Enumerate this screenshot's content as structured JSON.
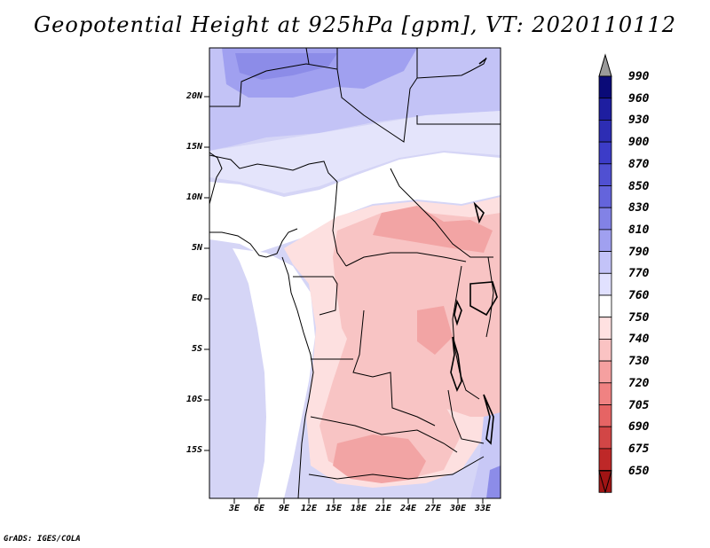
{
  "title": "Geopotential Height at 925hPa [gpm], VT: 2020110112",
  "credit": "GrADS: IGES/COLA",
  "lat_labels": [
    "20N",
    "15N",
    "10N",
    "5N",
    "EQ",
    "5S",
    "10S",
    "15S"
  ],
  "lon_labels": [
    "3E",
    "6E",
    "9E",
    "12E",
    "15E",
    "18E",
    "21E",
    "24E",
    "27E",
    "30E",
    "33E"
  ],
  "colorbar": {
    "levels": [
      "990",
      "960",
      "930",
      "900",
      "870",
      "850",
      "830",
      "810",
      "790",
      "770",
      "760",
      "750",
      "740",
      "730",
      "720",
      "705",
      "690",
      "675",
      "650"
    ],
    "colors": [
      "#0a0a78",
      "#1e1ea0",
      "#2d2db4",
      "#3c3cc8",
      "#5050d2",
      "#6464dc",
      "#8282e6",
      "#a0a0f0",
      "#c3c3f8",
      "#e1e1ff",
      "#ffffff",
      "#ffe1e1",
      "#fac3c3",
      "#f5a0a0",
      "#f08282",
      "#e66464",
      "#d24646",
      "#be2828",
      "#a01414"
    ],
    "over_color": "#9a9a9a",
    "under_color": "#a01414"
  }
}
